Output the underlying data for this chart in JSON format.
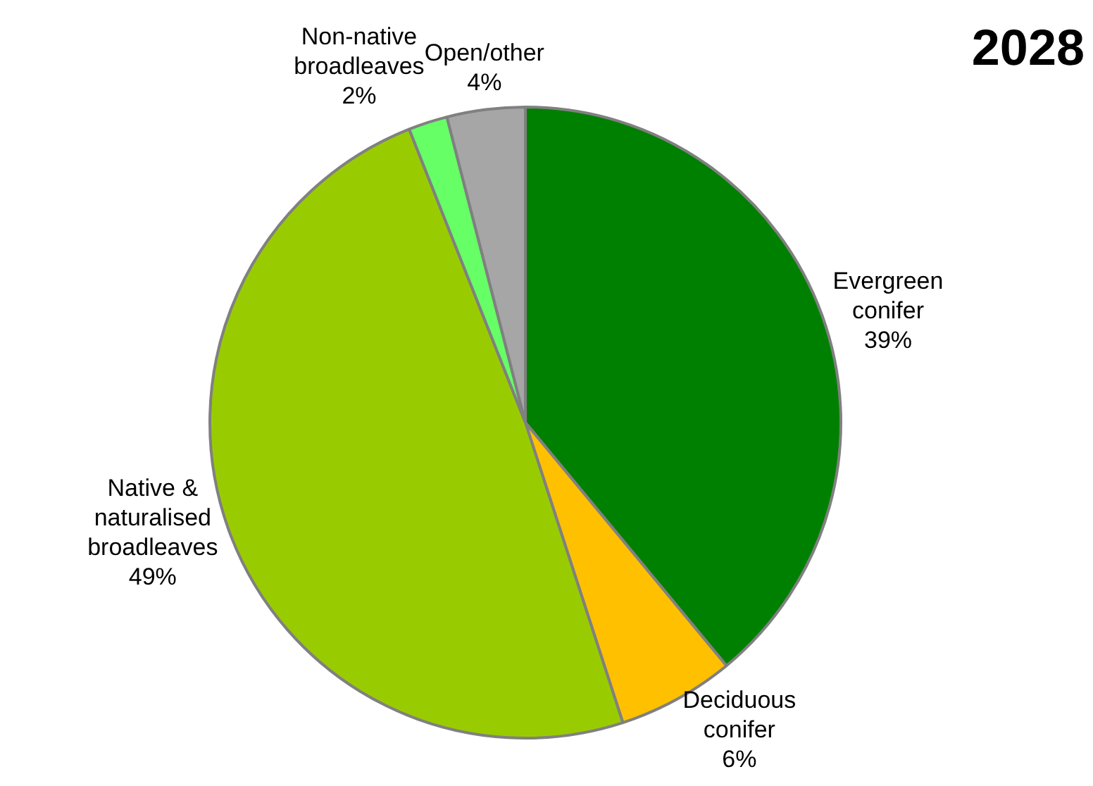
{
  "chart_data": {
    "type": "pie",
    "title": "2028",
    "categories": [
      "Evergreen conifer",
      "Deciduous conifer",
      "Native & naturalised broadleaves",
      "Non-native broadleaves",
      "Open/other"
    ],
    "values": [
      39,
      6,
      49,
      2,
      4
    ],
    "value_labels": [
      "39%",
      "6%",
      "49%",
      "2%",
      "4%"
    ],
    "colors": [
      "#008000",
      "#ffc000",
      "#99cc00",
      "#66ff66",
      "#a6a6a6"
    ],
    "legend": false
  }
}
